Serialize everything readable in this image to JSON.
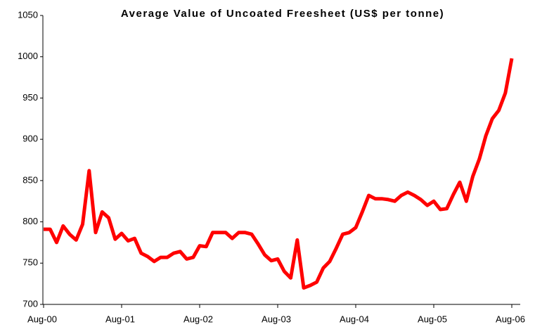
{
  "chart_data": {
    "type": "line",
    "title": "Average Value of Uncoated Freesheet (US$ per tonne)",
    "categories": [
      "Aug-00",
      null,
      null,
      null,
      null,
      null,
      null,
      null,
      null,
      null,
      null,
      null,
      "Aug-01",
      null,
      null,
      null,
      null,
      null,
      null,
      null,
      null,
      null,
      null,
      null,
      "Aug-02",
      null,
      null,
      null,
      null,
      null,
      null,
      null,
      null,
      null,
      null,
      null,
      "Aug-03",
      null,
      null,
      null,
      null,
      null,
      null,
      null,
      null,
      null,
      null,
      null,
      "Aug-04",
      null,
      null,
      null,
      null,
      null,
      null,
      null,
      null,
      null,
      null,
      null,
      "Aug-05",
      null,
      null,
      null,
      null,
      null,
      null,
      null,
      null,
      null,
      null,
      null,
      "Aug-06"
    ],
    "series": [
      {
        "color": "#ff0000",
        "values": [
          791,
          791,
          775,
          795,
          785,
          778,
          797,
          862,
          787,
          812,
          805,
          779,
          786,
          777,
          780,
          762,
          758,
          752,
          757,
          757,
          762,
          764,
          755,
          757,
          771,
          770,
          787,
          787,
          787,
          780,
          787,
          787,
          785,
          773,
          760,
          753,
          755,
          740,
          732,
          778,
          720,
          723,
          727,
          744,
          752,
          768,
          785,
          787,
          793,
          812,
          832,
          828,
          828,
          827,
          825,
          832,
          836,
          832,
          827,
          820,
          825,
          815,
          816,
          833,
          848,
          825,
          855,
          876,
          904,
          925,
          935,
          956,
          998
        ]
      }
    ],
    "ylim": [
      700,
      1050
    ],
    "yticks": [
      700,
      750,
      800,
      850,
      900,
      950,
      1000,
      1050
    ]
  }
}
